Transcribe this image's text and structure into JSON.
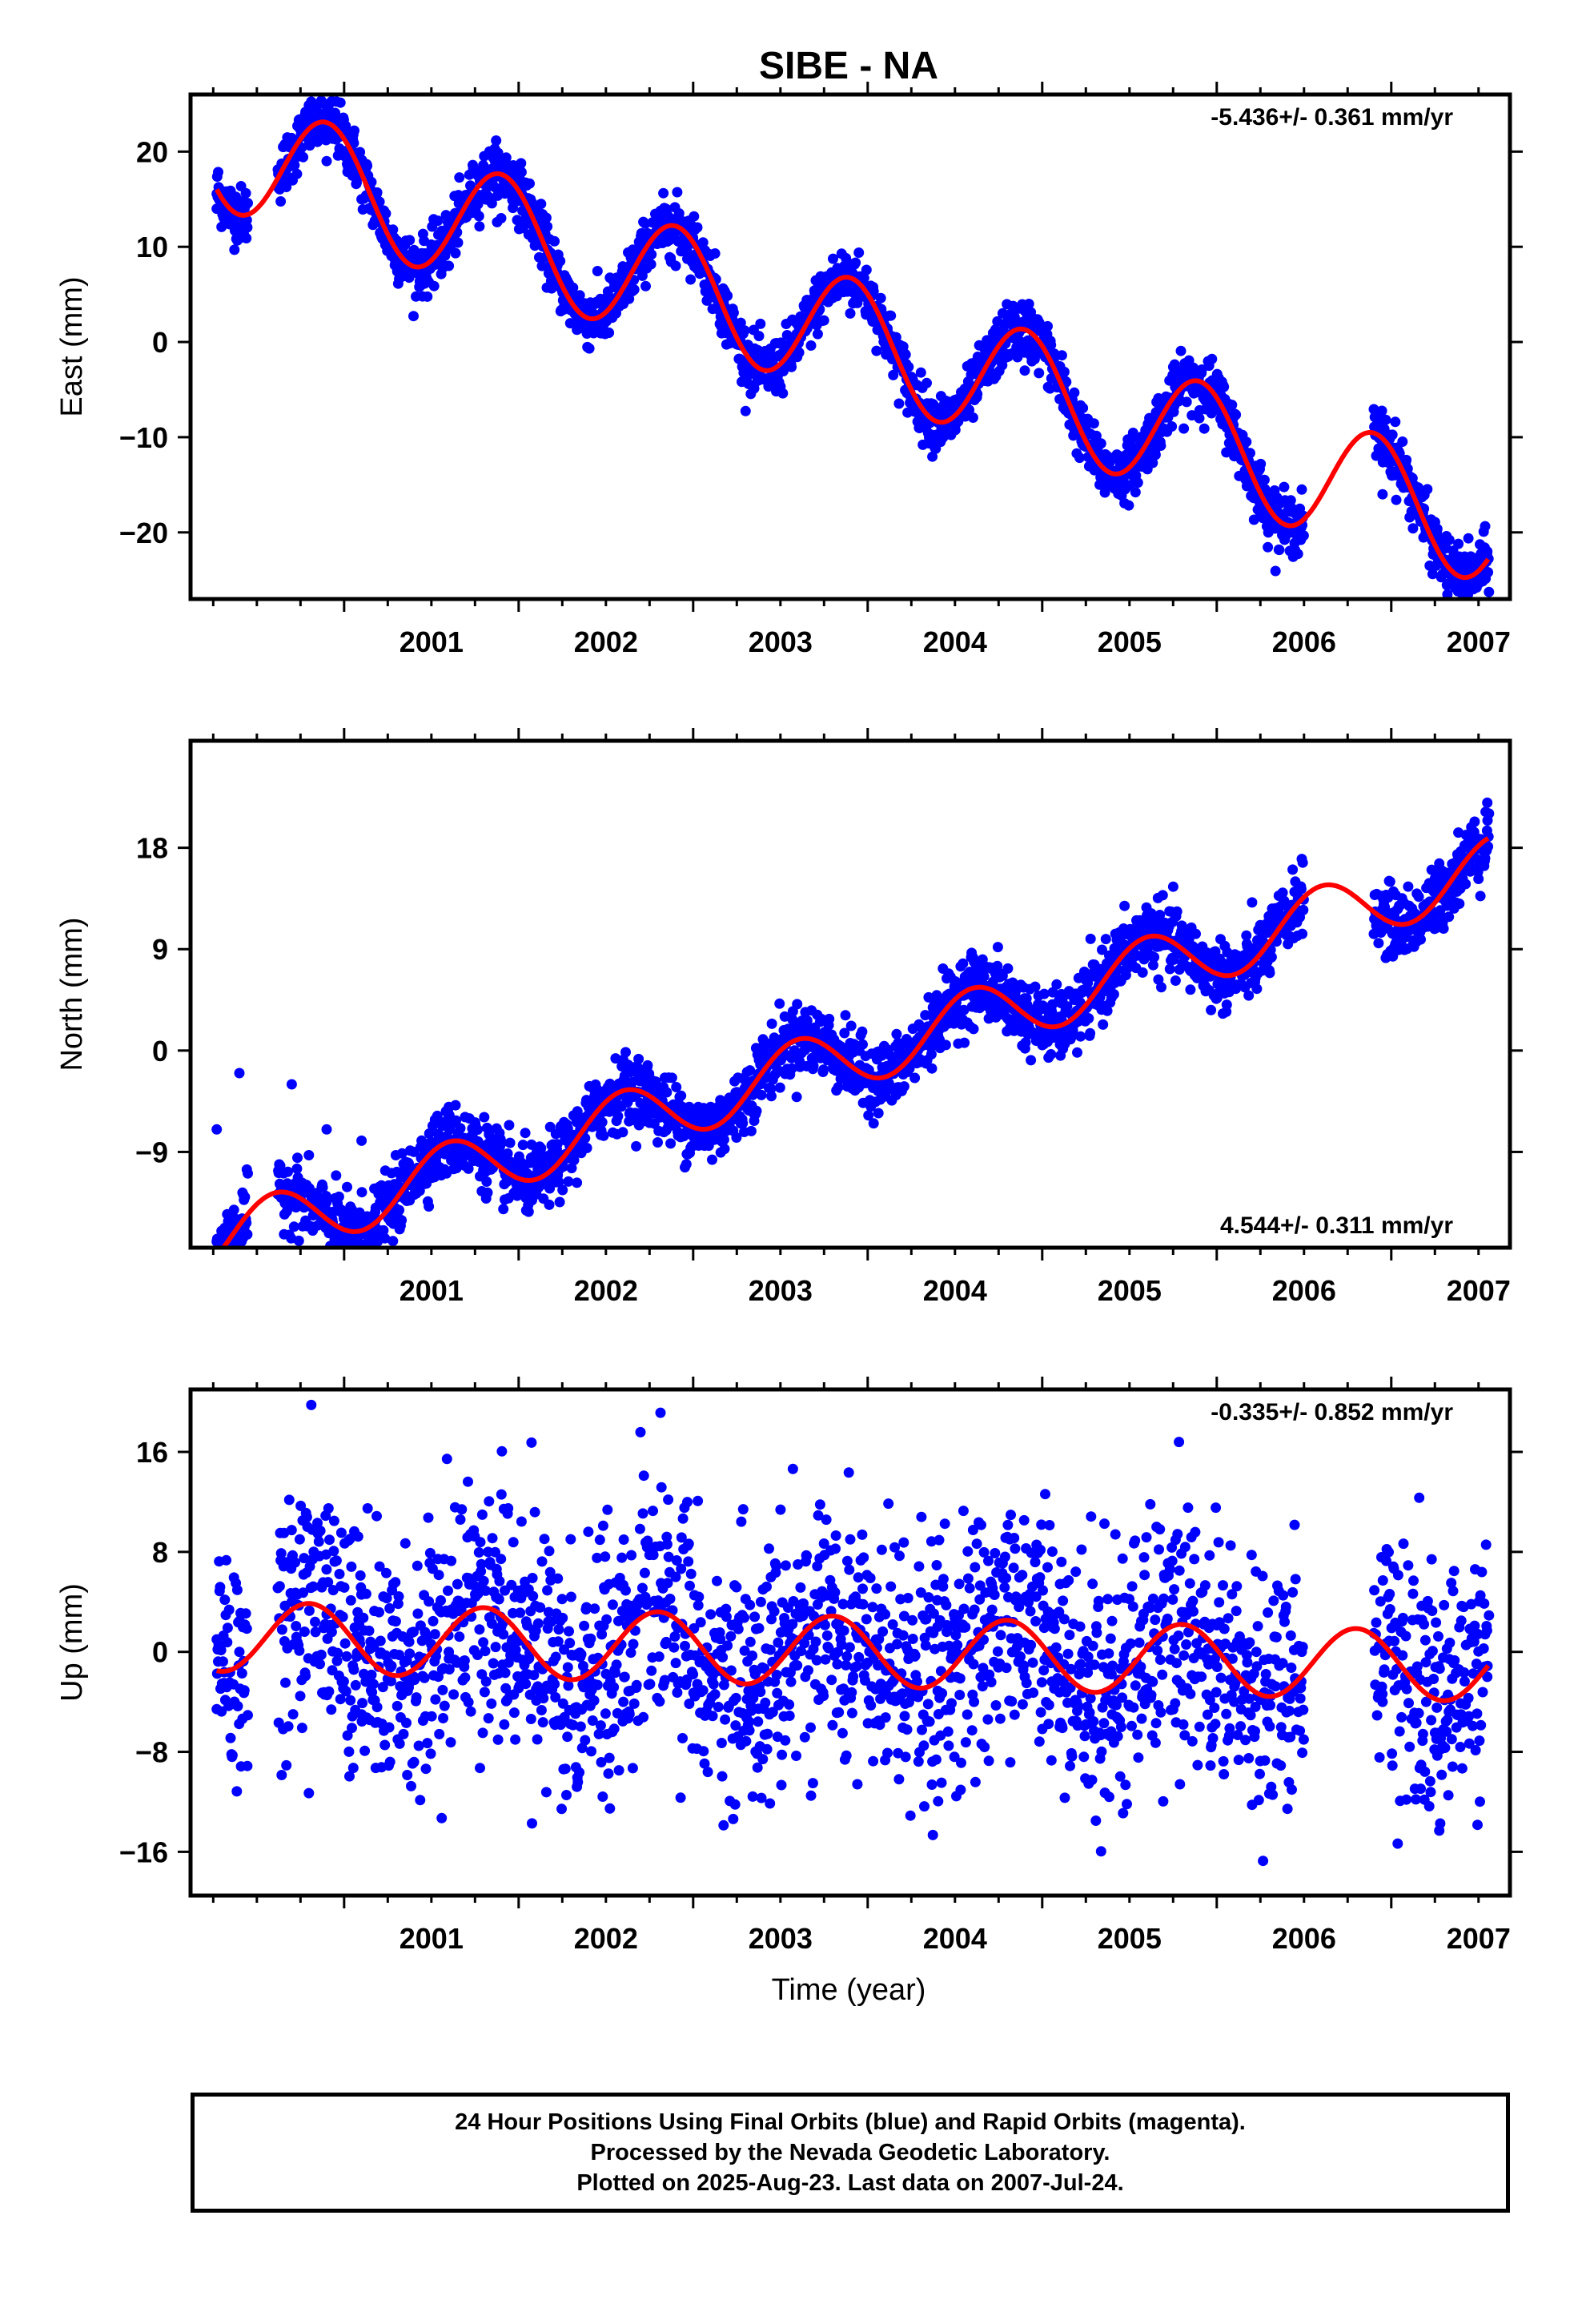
{
  "title": "SIBE - NA",
  "xlabel": "Time (year)",
  "x_tick_labels": [
    "2001",
    "2002",
    "2003",
    "2004",
    "2005",
    "2006",
    "2007"
  ],
  "footer": {
    "line1": "24 Hour Positions Using Final Orbits (blue) and Rapid Orbits (magenta).",
    "line2": "Processed by the Nevada Geodetic Laboratory.",
    "line3": "Plotted on 2025-Aug-23. Last data on 2007-Jul-24."
  },
  "colors": {
    "data_points": "#0000ff",
    "model_curve": "#ff0000",
    "frame": "#000000"
  },
  "chart_data": [
    {
      "type": "scatter",
      "panel": "east",
      "ylabel": "East (mm)",
      "rate": "-5.436+/- 0.361 mm/yr",
      "rate_placement": "top-right",
      "xlim": [
        2000.12,
        2007.68
      ],
      "ylim": [
        -27,
        26
      ],
      "y_ticks": [
        20,
        10,
        0,
        -10,
        -20
      ],
      "trend": {
        "slope": -5.436,
        "value_at_2004": 0
      },
      "seasonal": {
        "amplitude": 6.2,
        "peak_phase": 0.9
      },
      "scatter_sd": 1.5,
      "data_segments": [
        [
          2000.27,
          2000.45
        ],
        [
          2000.62,
          2006.5
        ],
        [
          2006.9,
          2007.56
        ]
      ],
      "series": [
        {
          "name": "Final Orbits (blue)",
          "style": "points",
          "x": [
            2000.27,
            2000.4,
            2000.7,
            2000.9,
            2001.1,
            2001.4,
            2001.6,
            2001.9,
            2002.1,
            2002.4,
            2002.6,
            2002.9,
            2003.1,
            2003.4,
            2003.6,
            2003.9,
            2004.1,
            2004.4,
            2004.6,
            2004.9,
            2005.1,
            2005.4,
            2005.6,
            2005.9,
            2006.1,
            2006.45,
            2006.95,
            2007.2,
            2007.4,
            2007.55
          ],
          "y": [
            14,
            13,
            17,
            19,
            15,
            8,
            8,
            13,
            11,
            3,
            4,
            8,
            6,
            -2,
            -1,
            3,
            0,
            -8,
            -6,
            -3,
            -6,
            -14,
            -12,
            -8,
            -12,
            -20,
            -16,
            -20,
            -25,
            -22
          ]
        },
        {
          "name": "model",
          "style": "line"
        }
      ]
    },
    {
      "type": "scatter",
      "panel": "north",
      "ylabel": "North (mm)",
      "rate": "4.544+/- 0.311 mm/yr",
      "rate_placement": "bottom-right",
      "xlim": [
        2000.12,
        2007.68
      ],
      "ylim": [
        -17.5,
        27.5
      ],
      "y_ticks": [
        18,
        9,
        0,
        -9
      ],
      "trend": {
        "slope": 4.544,
        "value_at_2004": 0
      },
      "seasonal": {
        "amplitude": 2.8,
        "peak_phase": 0.6
      },
      "scatter_sd": 1.5,
      "data_segments": [
        [
          2000.27,
          2000.45
        ],
        [
          2000.62,
          2006.5
        ],
        [
          2006.9,
          2007.56
        ]
      ],
      "series": [
        {
          "name": "Final Orbits (blue)",
          "style": "points",
          "x": [
            2000.27,
            2000.4,
            2000.7,
            2000.9,
            2001.1,
            2001.4,
            2001.6,
            2001.9,
            2002.1,
            2002.4,
            2002.6,
            2002.9,
            2003.1,
            2003.4,
            2003.6,
            2003.9,
            2004.1,
            2004.4,
            2004.6,
            2004.9,
            2005.1,
            2005.4,
            2005.6,
            2005.9,
            2006.1,
            2006.45,
            2006.95,
            2007.2,
            2007.4,
            2007.55
          ],
          "y": [
            -7,
            -2,
            -3,
            -7,
            -8,
            -9,
            -5,
            -10,
            -11,
            -5,
            -3,
            -6,
            -5,
            1,
            2,
            -2,
            -2,
            3,
            6,
            3,
            3,
            8,
            12,
            8,
            8,
            15,
            11,
            13,
            17,
            22
          ]
        },
        {
          "name": "model",
          "style": "line"
        }
      ]
    },
    {
      "type": "scatter",
      "panel": "up",
      "ylabel": "Up (mm)",
      "rate": "-0.335+/- 0.852 mm/yr",
      "rate_placement": "top-right",
      "xlim": [
        2000.12,
        2007.68
      ],
      "ylim": [
        -19.5,
        21
      ],
      "y_ticks": [
        16,
        8,
        0,
        -8,
        -16
      ],
      "trend": {
        "slope": -0.335,
        "value_at_2004": 0
      },
      "seasonal": {
        "amplitude": 2.8,
        "peak_phase": 0.8
      },
      "scatter_sd": 5,
      "data_segments": [
        [
          2000.27,
          2000.45
        ],
        [
          2000.62,
          2006.5
        ],
        [
          2006.9,
          2007.56
        ]
      ],
      "series": [
        {
          "name": "Final Orbits (blue)",
          "style": "points",
          "x": [
            2000.27,
            2000.4,
            2000.7,
            2000.9,
            2001.1,
            2001.4,
            2001.6,
            2001.9,
            2002.1,
            2002.4,
            2002.6,
            2002.9,
            2003.1,
            2003.4,
            2003.6,
            2003.9,
            2004.1,
            2004.4,
            2004.6,
            2004.9,
            2005.1,
            2005.4,
            2005.6,
            2005.9,
            2006.1,
            2006.45,
            2006.95,
            2007.2,
            2007.4,
            2007.55
          ],
          "y": [
            1,
            0,
            4,
            3,
            -5,
            -2,
            0,
            2,
            -3,
            -2,
            -4,
            6,
            3,
            5,
            7,
            9,
            3,
            2,
            3,
            -2,
            -6,
            -5,
            -3,
            0,
            -4,
            -3,
            -4,
            -4,
            -5,
            -2
          ]
        },
        {
          "name": "model",
          "style": "line"
        }
      ]
    }
  ]
}
